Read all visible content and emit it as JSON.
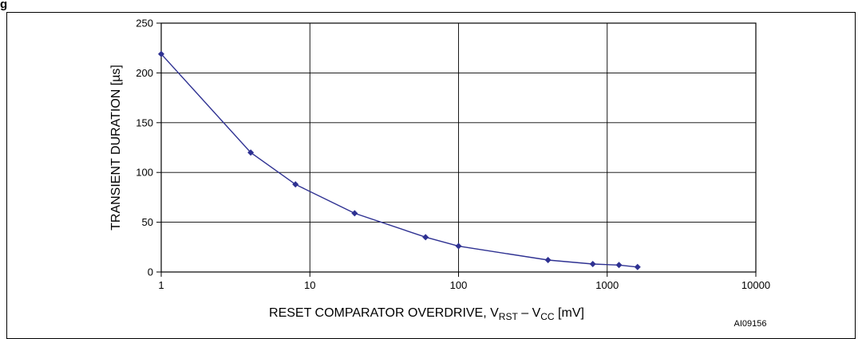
{
  "figure_label": "g",
  "figure_id": "AI09156",
  "colors": {
    "series": "#2e3192",
    "grid": "#000000",
    "axis": "#000000"
  },
  "chart_data": {
    "type": "line",
    "xscale": "log",
    "xlim": [
      1,
      10000
    ],
    "ylim": [
      0,
      250
    ],
    "xticks": [
      1,
      10,
      100,
      1000,
      10000
    ],
    "xtick_labels": [
      "1",
      "10",
      "100",
      "1000",
      "10000"
    ],
    "yticks": [
      0,
      50,
      100,
      150,
      200,
      250
    ],
    "ytick_labels": [
      "0",
      "50",
      "100",
      "150",
      "200",
      "250"
    ],
    "ylabel": "TRANSIENT DURATION [µs]",
    "xlabel": {
      "prefix": "RESET COMPARATOR OVERDRIVE, V",
      "sub1": "RST",
      "middle": " – V",
      "sub2": "CC",
      "suffix": " [mV]"
    },
    "grid": true,
    "marker": "diamond",
    "series": [
      {
        "x": [
          1,
          4,
          8,
          20,
          60,
          100,
          400,
          800,
          1200,
          1600
        ],
        "y": [
          219,
          120,
          88,
          59,
          35,
          26,
          12,
          8,
          7,
          5
        ]
      }
    ]
  }
}
